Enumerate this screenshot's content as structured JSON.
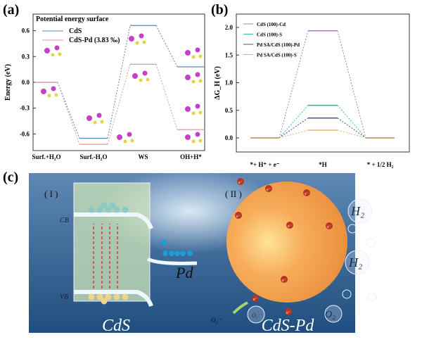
{
  "panels": {
    "a": "(a)",
    "b": "(b)",
    "c": "(c)"
  },
  "chart_data": [
    {
      "type": "line",
      "title": "Potential energy surface",
      "ylabel": "Energy (eV)",
      "xlabel": "",
      "categories": [
        "Surf.+H₂O",
        "Surf.-H₂O",
        "WS",
        "OH+H*"
      ],
      "yticks": [
        "0.6",
        "0.3",
        "0.0",
        "-0.3",
        "-0.6"
      ],
      "ylim": [
        -0.8,
        0.75
      ],
      "legend": "top-left",
      "series": [
        {
          "name": "CdS",
          "color": "#5b86b8",
          "values": [
            0.0,
            -0.65,
            0.66,
            0.18
          ]
        },
        {
          "name": "CdS-Pd (3.83 ‰)",
          "color": "#e59aa0",
          "values": [
            0.0,
            -0.72,
            0.21,
            -0.55
          ]
        }
      ]
    },
    {
      "type": "line",
      "ylabel": "ΔG_H (eV)",
      "xlabel": "",
      "categories": [
        "*+ H⁺ + e⁻",
        "*H",
        "* + 1/2 H₂"
      ],
      "yticks": [
        "2.0",
        "1.5",
        "1.0",
        "0.5",
        "0.0"
      ],
      "ylim": [
        -0.25,
        2.25
      ],
      "legend": "top-left",
      "series": [
        {
          "name": "CdS (100)-Cd",
          "color": "#a27fcf",
          "values": [
            0,
            1.94,
            0
          ]
        },
        {
          "name": "CdS (100)-S",
          "color": "#2dbfa0",
          "values": [
            0,
            0.59,
            0
          ]
        },
        {
          "name": "Pd SA/CdS (100)-Pd",
          "color": "#4a4f8f",
          "values": [
            0,
            0.36,
            0
          ]
        },
        {
          "name": "Pd SA/CdS (100)-S",
          "color": "#f0b07a",
          "values": [
            0,
            0.14,
            0
          ]
        }
      ]
    }
  ],
  "illustration": {
    "stage1": "( I )",
    "stage2": "( II )",
    "cb": "CB",
    "vb": "VB",
    "pd": "Pd",
    "cds": "CdS",
    "cdspd": "CdS-Pd",
    "h2": "H₂",
    "o2": "O₂",
    "o2rad": "O₂⁻",
    "electron": "e⁻"
  }
}
